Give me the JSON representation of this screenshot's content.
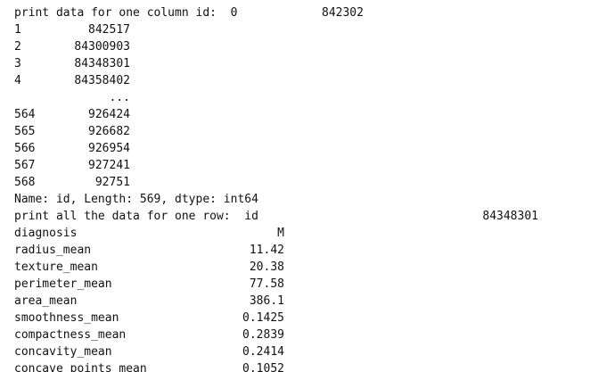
{
  "output": {
    "header1": {
      "text": "print data for one column id:  0",
      "value": "842302"
    },
    "series_head": [
      {
        "index": "1",
        "value": "842517"
      },
      {
        "index": "2",
        "value": "84300903"
      },
      {
        "index": "3",
        "value": "84348301"
      },
      {
        "index": "4",
        "value": "84358402"
      }
    ],
    "ellipsis": "...",
    "series_tail": [
      {
        "index": "564",
        "value": "926424"
      },
      {
        "index": "565",
        "value": "926682"
      },
      {
        "index": "566",
        "value": "926954"
      },
      {
        "index": "567",
        "value": "927241"
      },
      {
        "index": "568",
        "value": "92751"
      }
    ],
    "series_footer": "Name: id, Length: 569, dtype: int64",
    "header2": {
      "text": "print all the data for one row:  id",
      "value": "84348301"
    },
    "row": [
      {
        "field": "diagnosis",
        "value": "M"
      },
      {
        "field": "radius_mean",
        "value": "11.42"
      },
      {
        "field": "texture_mean",
        "value": "20.38"
      },
      {
        "field": "perimeter_mean",
        "value": "77.58"
      },
      {
        "field": "area_mean",
        "value": "386.1"
      },
      {
        "field": "smoothness_mean",
        "value": "0.1425"
      },
      {
        "field": "compactness_mean",
        "value": "0.2839"
      },
      {
        "field": "concavity_mean",
        "value": "0.2414"
      },
      {
        "field": "concave points_mean",
        "value": "0.1052"
      }
    ]
  }
}
